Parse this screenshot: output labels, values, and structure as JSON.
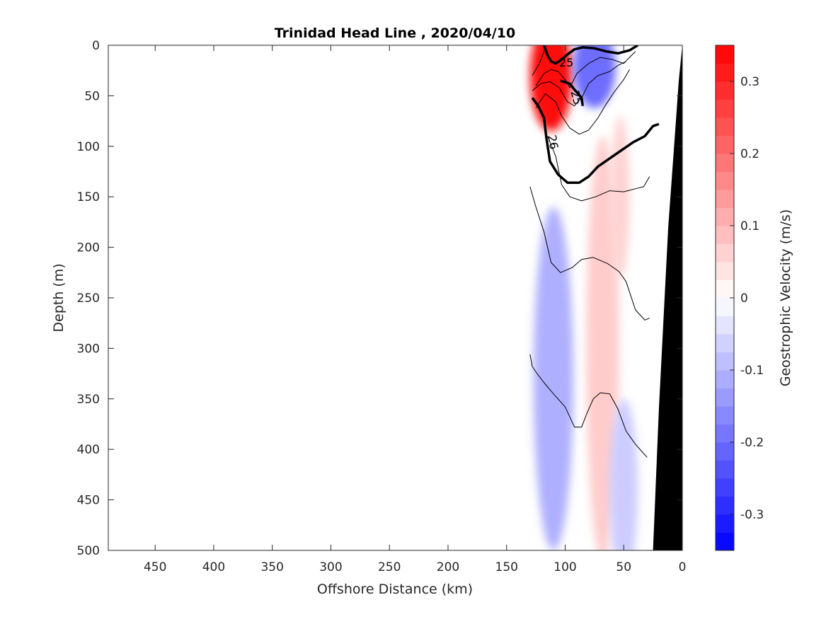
{
  "chart_data": {
    "type": "contour",
    "title": "Trinidad Head Line , 2020/04/10",
    "xlabel": "Offshore Distance (km)",
    "ylabel": "Depth (m)",
    "xlim": [
      490,
      0
    ],
    "ylim": [
      0,
      500
    ],
    "x_reversed": true,
    "y_reversed": true,
    "x_ticks": [
      450,
      400,
      350,
      300,
      250,
      200,
      150,
      100,
      50,
      0
    ],
    "y_ticks": [
      0,
      50,
      100,
      150,
      200,
      250,
      300,
      350,
      400,
      450,
      500
    ],
    "grid": false,
    "colorbar": {
      "label": "Geostrophic Velocity (m/s)",
      "range": [
        -0.35,
        0.35
      ],
      "step": 0.025,
      "ticks": [
        -0.3,
        -0.2,
        -0.1,
        0,
        0.1,
        0.2,
        0.3
      ],
      "tick_labels": [
        "-0.3",
        "-0.2",
        "-0.1",
        "0",
        "0.1",
        "0.2",
        "0.3"
      ],
      "colormap": "blue-white-red",
      "neg_color": "#0000ff",
      "pos_color": "#ff0000"
    },
    "velocity_features": [
      {
        "shape": "ellipse",
        "cx": 112,
        "cy": 30,
        "rx": 18,
        "ry": 55,
        "value": 0.33
      },
      {
        "shape": "ellipse",
        "cx": 75,
        "cy": 22,
        "rx": 18,
        "ry": 40,
        "value": -0.2
      },
      {
        "shape": "ellipse",
        "cx": 110,
        "cy": 330,
        "rx": 17,
        "ry": 170,
        "value": -0.11
      },
      {
        "shape": "ellipse",
        "cx": 68,
        "cy": 300,
        "rx": 14,
        "ry": 210,
        "value": 0.07
      },
      {
        "shape": "ellipse",
        "cx": 53,
        "cy": 150,
        "rx": 8,
        "ry": 80,
        "value": 0.06
      },
      {
        "shape": "ellipse",
        "cx": 50,
        "cy": 440,
        "rx": 12,
        "ry": 90,
        "value": -0.07
      }
    ],
    "isopycnals": [
      {
        "level": 25,
        "bold": true,
        "points": [
          [
            118,
            0
          ],
          [
            115,
            10
          ],
          [
            112,
            16
          ],
          [
            108,
            18
          ],
          [
            104,
            15
          ],
          [
            98,
            9
          ],
          [
            92,
            4
          ],
          [
            85,
            2
          ],
          [
            75,
            3
          ],
          [
            65,
            6
          ],
          [
            55,
            8
          ],
          [
            45,
            5
          ],
          [
            38,
            0
          ]
        ]
      },
      {
        "level": null,
        "bold": false,
        "points": [
          [
            128,
            30
          ],
          [
            122,
            18
          ],
          [
            118,
            6
          ],
          [
            117,
            0
          ]
        ]
      },
      {
        "level": null,
        "bold": false,
        "points": [
          [
            125,
            40
          ],
          [
            118,
            28
          ],
          [
            112,
            24
          ],
          [
            106,
            26
          ],
          [
            100,
            34
          ],
          [
            96,
            42
          ],
          [
            90,
            28
          ],
          [
            80,
            18
          ],
          [
            70,
            12
          ],
          [
            60,
            14
          ],
          [
            50,
            18
          ],
          [
            45,
            12
          ],
          [
            40,
            6
          ]
        ]
      },
      {
        "level": null,
        "bold": false,
        "points": [
          [
            128,
            45
          ],
          [
            121,
            38
          ],
          [
            113,
            36
          ],
          [
            105,
            42
          ],
          [
            98,
            56
          ],
          [
            92,
            60
          ],
          [
            85,
            50
          ],
          [
            80,
            38
          ],
          [
            72,
            30
          ],
          [
            62,
            26
          ],
          [
            55,
            20
          ],
          [
            48,
            16
          ]
        ]
      },
      {
        "level": 25,
        "bold": true,
        "points": [
          [
            104,
            35
          ],
          [
            96,
            38
          ],
          [
            92,
            44
          ],
          [
            86,
            52
          ],
          [
            85,
            60
          ]
        ]
      },
      {
        "level": null,
        "bold": false,
        "points": [
          [
            125,
            62
          ],
          [
            117,
            48
          ],
          [
            108,
            56
          ],
          [
            103,
            70
          ],
          [
            96,
            82
          ],
          [
            88,
            88
          ],
          [
            80,
            84
          ],
          [
            72,
            72
          ],
          [
            66,
            60
          ],
          [
            58,
            46
          ],
          [
            50,
            34
          ],
          [
            45,
            24
          ]
        ]
      },
      {
        "level": 26,
        "bold": true,
        "points": [
          [
            128,
            52
          ],
          [
            123,
            60
          ],
          [
            118,
            72
          ],
          [
            116,
            92
          ],
          [
            113,
            115
          ],
          [
            106,
            128
          ],
          [
            98,
            136
          ],
          [
            88,
            136
          ],
          [
            80,
            130
          ],
          [
            72,
            120
          ],
          [
            62,
            112
          ],
          [
            52,
            104
          ],
          [
            42,
            96
          ],
          [
            32,
            90
          ],
          [
            25,
            80
          ],
          [
            20,
            78
          ]
        ]
      },
      {
        "level": null,
        "bold": false,
        "points": [
          [
            115,
            90
          ],
          [
            108,
            110
          ],
          [
            103,
            138
          ],
          [
            96,
            150
          ],
          [
            86,
            154
          ],
          [
            74,
            150
          ],
          [
            62,
            144
          ],
          [
            50,
            145
          ],
          [
            40,
            142
          ],
          [
            33,
            140
          ],
          [
            28,
            130
          ]
        ]
      },
      {
        "level": null,
        "bold": false,
        "points": [
          [
            130,
            140
          ],
          [
            125,
            160
          ],
          [
            118,
            185
          ],
          [
            112,
            215
          ],
          [
            104,
            225
          ],
          [
            94,
            220
          ],
          [
            86,
            212
          ],
          [
            76,
            210
          ],
          [
            64,
            216
          ],
          [
            54,
            224
          ],
          [
            48,
            234
          ],
          [
            40,
            262
          ],
          [
            32,
            272
          ],
          [
            28,
            270
          ]
        ]
      },
      {
        "level": null,
        "bold": false,
        "points": [
          [
            130,
            306
          ],
          [
            128,
            318
          ],
          [
            124,
            325
          ],
          [
            118,
            334
          ],
          [
            110,
            345
          ],
          [
            100,
            358
          ],
          [
            92,
            378
          ],
          [
            86,
            378
          ],
          [
            82,
            366
          ],
          [
            76,
            350
          ],
          [
            70,
            344
          ],
          [
            62,
            345
          ],
          [
            55,
            360
          ],
          [
            48,
            382
          ],
          [
            40,
            395
          ],
          [
            30,
            408
          ]
        ]
      }
    ],
    "bathymetry": [
      [
        25,
        500
      ],
      [
        20,
        360
      ],
      [
        16,
        270
      ],
      [
        12,
        180
      ],
      [
        7,
        100
      ],
      [
        3,
        35
      ],
      [
        0,
        0
      ],
      [
        0,
        500
      ]
    ],
    "isopycnal_labels": [
      {
        "text": "25",
        "x": 99,
        "y": 18,
        "rotate": 0
      },
      {
        "text": "25",
        "x": 91,
        "y": 52,
        "rotate": 75
      },
      {
        "text": "26",
        "x": 111,
        "y": 96,
        "rotate": 80
      }
    ]
  }
}
